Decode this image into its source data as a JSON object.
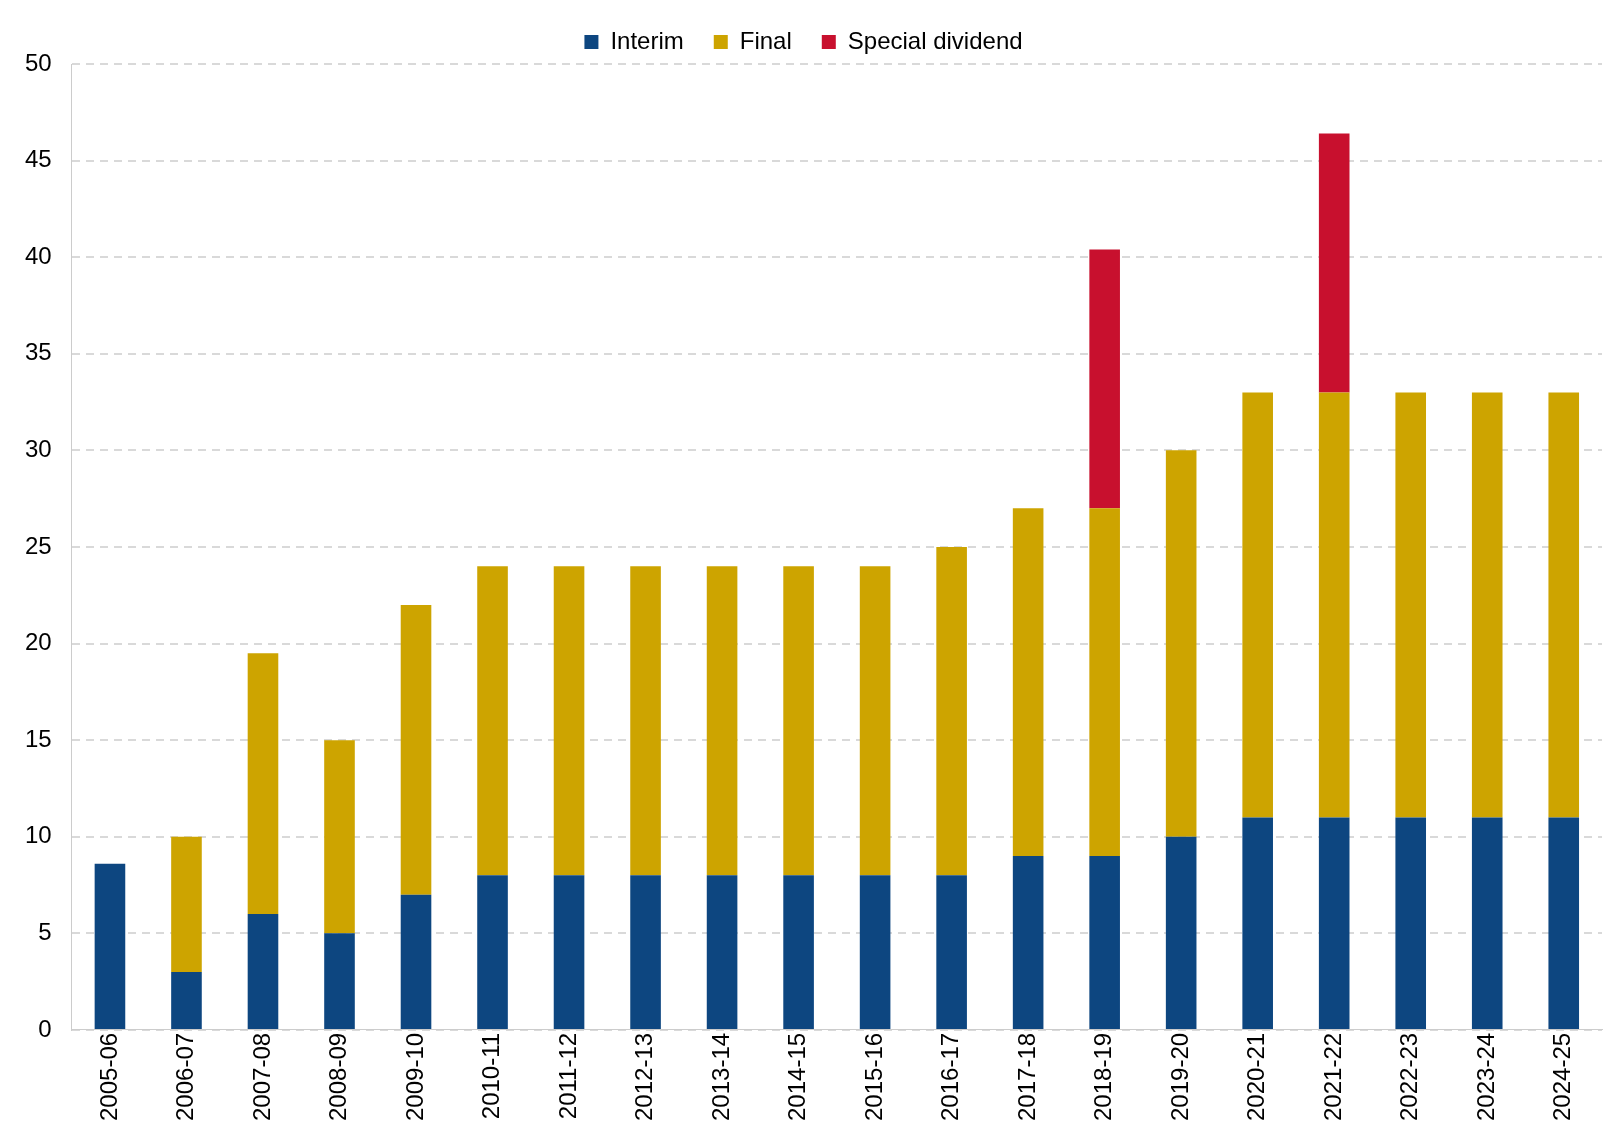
{
  "chart_data": {
    "type": "bar",
    "stacked": true,
    "legend": "top",
    "grid": "y",
    "categories": [
      "2005-06",
      "2006-07",
      "2007-08",
      "2008-09",
      "2009-10",
      "2010-11",
      "2011-12",
      "2012-13",
      "2013-14",
      "2014-15",
      "2015-16",
      "2016-17",
      "2017-18",
      "2018-19",
      "2019-20",
      "2020-21",
      "2021-22",
      "2022-23",
      "2023-24",
      "2024-25"
    ],
    "series": [
      {
        "name": "Interim",
        "color": "#0d4680",
        "values": [
          8.6,
          3,
          6,
          5,
          7,
          8,
          8,
          8,
          8,
          8,
          8,
          8,
          9,
          9,
          10,
          11,
          11,
          11,
          11,
          11
        ]
      },
      {
        "name": "Final",
        "color": "#cda400",
        "values": [
          null,
          7,
          13.5,
          10,
          15,
          16,
          16,
          16,
          16,
          16,
          16,
          17,
          18,
          18,
          20,
          22,
          22,
          22,
          22,
          22
        ]
      },
      {
        "name": "Special dividend",
        "color": "#c8102e",
        "values": [
          null,
          null,
          null,
          null,
          null,
          null,
          null,
          null,
          null,
          null,
          null,
          null,
          null,
          13.4,
          null,
          null,
          13.4,
          null,
          null,
          null
        ]
      }
    ],
    "ylim": [
      0,
      50
    ],
    "yticks": [
      0,
      5,
      10,
      15,
      20,
      25,
      30,
      35,
      40,
      45,
      50
    ]
  }
}
